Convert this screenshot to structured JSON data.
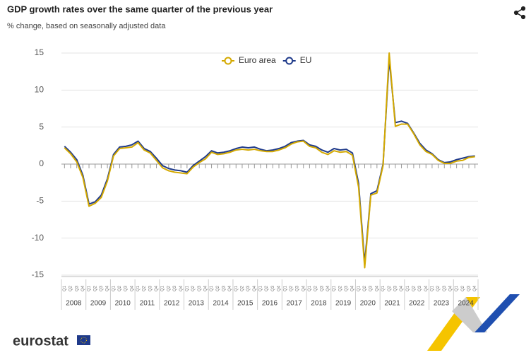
{
  "chart_data": {
    "type": "line",
    "title": "GDP growth rates over the same quarter of the previous year",
    "subtitle": "% change, based on seasonally adjusted data",
    "categories": [
      "Q1",
      "Q2",
      "Q3",
      "Q4",
      "Q1",
      "Q2",
      "Q3",
      "Q4",
      "Q1",
      "Q2",
      "Q3",
      "Q4",
      "Q1",
      "Q2",
      "Q3",
      "Q4",
      "Q1",
      "Q2",
      "Q3",
      "Q4",
      "Q1",
      "Q2",
      "Q3",
      "Q4",
      "Q1",
      "Q2",
      "Q3",
      "Q4",
      "Q1",
      "Q2",
      "Q3",
      "Q4",
      "Q1",
      "Q2",
      "Q3",
      "Q4",
      "Q1",
      "Q2",
      "Q3",
      "Q4",
      "Q1",
      "Q2",
      "Q3",
      "Q4",
      "Q1",
      "Q2",
      "Q3",
      "Q4",
      "Q1",
      "Q2",
      "Q3",
      "Q4",
      "Q1",
      "Q2",
      "Q3",
      "Q4",
      "Q1",
      "Q2",
      "Q3",
      "Q4",
      "Q1",
      "Q2",
      "Q3",
      "Q4",
      "Q1",
      "Q2",
      "Q3",
      "Q4"
    ],
    "year_labels": [
      "2008",
      "2009",
      "2010",
      "2011",
      "2012",
      "2013",
      "2014",
      "2015",
      "2016",
      "2017",
      "2018",
      "2019",
      "2020",
      "2021",
      "2022",
      "2023",
      "2024"
    ],
    "series": [
      {
        "name": "EU",
        "color": "#1f3a8a",
        "values": [
          2.4,
          1.6,
          0.6,
          -1.5,
          -5.4,
          -5.1,
          -4.2,
          -2.0,
          1.3,
          2.3,
          2.4,
          2.6,
          3.1,
          2.1,
          1.7,
          0.8,
          -0.2,
          -0.6,
          -0.8,
          -0.9,
          -1.1,
          -0.2,
          0.4,
          1.0,
          1.8,
          1.5,
          1.6,
          1.8,
          2.1,
          2.3,
          2.2,
          2.3,
          2.0,
          1.8,
          1.9,
          2.1,
          2.4,
          2.9,
          3.1,
          3.2,
          2.6,
          2.4,
          1.9,
          1.6,
          2.1,
          1.9,
          2.0,
          1.5,
          -2.6,
          -13.4,
          -4.0,
          -3.6,
          0.0,
          14.2,
          5.6,
          5.8,
          5.5,
          4.2,
          2.8,
          1.9,
          1.4,
          0.6,
          0.2,
          0.3,
          0.6,
          0.8,
          1.0,
          1.1
        ]
      },
      {
        "name": "Euro area",
        "color": "#d4a900",
        "values": [
          2.2,
          1.4,
          0.3,
          -1.8,
          -5.7,
          -5.3,
          -4.5,
          -2.3,
          1.1,
          2.1,
          2.2,
          2.3,
          2.9,
          1.9,
          1.5,
          0.5,
          -0.5,
          -0.9,
          -1.1,
          -1.2,
          -1.3,
          -0.4,
          0.2,
          0.7,
          1.6,
          1.3,
          1.4,
          1.6,
          1.9,
          2.0,
          1.9,
          2.0,
          1.8,
          1.7,
          1.7,
          1.9,
          2.2,
          2.7,
          3.0,
          3.1,
          2.4,
          2.2,
          1.6,
          1.3,
          1.8,
          1.6,
          1.7,
          1.2,
          -3.1,
          -14.0,
          -4.2,
          -3.9,
          -0.2,
          15.0,
          5.1,
          5.4,
          5.4,
          4.1,
          2.6,
          1.7,
          1.3,
          0.5,
          0.1,
          0.1,
          0.4,
          0.5,
          0.9,
          1.0
        ]
      }
    ],
    "ylim": [
      -15,
      15
    ],
    "yticks": [
      -15,
      -10,
      -5,
      0,
      5,
      10,
      15
    ],
    "grid": true
  },
  "footer": {
    "logo": "eurostat"
  }
}
